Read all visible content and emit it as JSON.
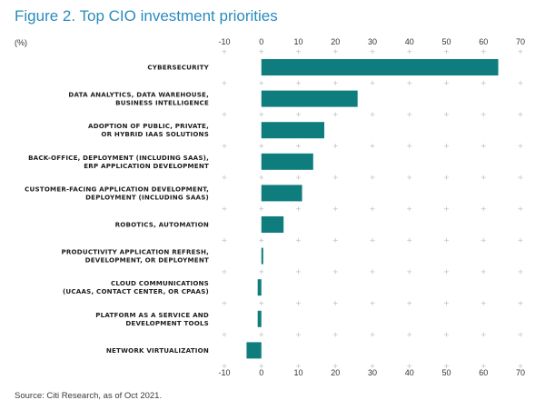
{
  "title": "Figure 2. Top CIO investment priorities",
  "unit_label": "(%)",
  "source": "Source: Citi Research, as of Oct 2021.",
  "colors": {
    "title": "#2a8bbd",
    "bar": "#0f7d7e",
    "grid": "#c7c7c7",
    "text": "#1e1e1e"
  },
  "chart_data": {
    "type": "bar",
    "orientation": "horizontal",
    "categories": [
      [
        "CYBERSECURITY"
      ],
      [
        "DATA ANALYTICS, DATA WAREHOUSE,",
        "BUSINESS INTELLIGENCE"
      ],
      [
        "ADOPTION OF PUBLIC, PRIVATE,",
        "OR HYBRID IAAS SOLUTIONS"
      ],
      [
        "BACK-OFFICE, DEPLOYMENT (INCLUDING SAAS),",
        "ERP APPLICATION DEVELOPMENT"
      ],
      [
        "CUSTOMER-FACING APPLICATION DEVELOPMENT,",
        "DEPLOYMENT (INCLUDING SAAS)"
      ],
      [
        "ROBOTICS, AUTOMATION"
      ],
      [
        "PRODUCTIVITY APPLICATION REFRESH,",
        "DEVELOPMENT, OR DEPLOYMENT"
      ],
      [
        "CLOUD COMMUNICATIONS",
        "(UCAAS, CONTACT CENTER, OR CPAAS)"
      ],
      [
        "PLATFORM AS A SERVICE AND",
        "DEVELOPMENT TOOLS"
      ],
      [
        "NETWORK VIRTUALIZATION"
      ]
    ],
    "values": [
      64,
      26,
      17,
      14,
      11,
      6,
      0.5,
      -1,
      -1,
      -4
    ],
    "xlim": [
      -10,
      70
    ],
    "xticks": [
      -10,
      0,
      10,
      20,
      30,
      40,
      50,
      60,
      70
    ],
    "tick_labels_top": true,
    "tick_labels_bottom": true,
    "grid": "plus-markers",
    "legend": "none"
  }
}
